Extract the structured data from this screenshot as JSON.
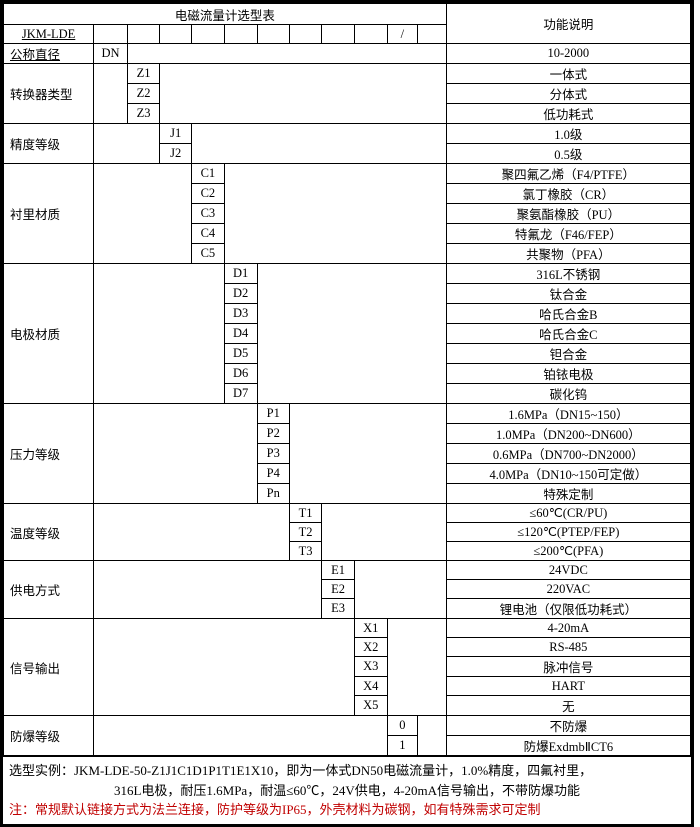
{
  "title": "电磁流量计选型表",
  "func_label": "功能说明",
  "model_code": "JKM-LDE",
  "slash": "/",
  "rows": [
    {
      "cat": "公称直径",
      "cat_class": "ul",
      "depth": 0,
      "code": "DN",
      "desc": "10-2000"
    },
    {
      "cat": "转换器类型",
      "depth": 1,
      "items": [
        [
          "Z1",
          "一体式"
        ],
        [
          "Z2",
          "分体式"
        ],
        [
          "Z3",
          "低功耗式"
        ]
      ]
    },
    {
      "cat": "精度等级",
      "depth": 2,
      "items": [
        [
          "J1",
          "1.0级"
        ],
        [
          "J2",
          "0.5级"
        ]
      ]
    },
    {
      "cat": "衬里材质",
      "depth": 3,
      "items": [
        [
          "C1",
          "聚四氟乙烯（F4/PTFE）"
        ],
        [
          "C2",
          "氯丁橡胶（CR）"
        ],
        [
          "C3",
          "聚氨酯橡胶（PU）"
        ],
        [
          "C4",
          "特氟龙（F46/FEP）"
        ],
        [
          "C5",
          "共聚物（PFA）"
        ]
      ]
    },
    {
      "cat": "电极材质",
      "depth": 4,
      "items": [
        [
          "D1",
          "316L不锈钢"
        ],
        [
          "D2",
          "钛合金"
        ],
        [
          "D3",
          "哈氏合金B"
        ],
        [
          "D4",
          "哈氏合金C"
        ],
        [
          "D5",
          "钽合金"
        ],
        [
          "D6",
          "铂铱电极"
        ],
        [
          "D7",
          "碳化钨"
        ]
      ]
    },
    {
      "cat": "压力等级",
      "depth": 5,
      "items": [
        [
          "P1",
          "1.6MPa（DN15~150）"
        ],
        [
          "P2",
          "1.0MPa（DN200~DN600）"
        ],
        [
          "P3",
          "0.6MPa（DN700~DN2000）"
        ],
        [
          "P4",
          "4.0MPa（DN10~150可定做）"
        ],
        [
          "Pn",
          "特殊定制"
        ]
      ]
    },
    {
      "cat": "温度等级",
      "depth": 6,
      "items": [
        [
          "T1",
          "≤60℃(CR/PU)"
        ],
        [
          "T2",
          "≤120℃(PTEP/FEP)"
        ],
        [
          "T3",
          "≤200℃(PFA)"
        ]
      ]
    },
    {
      "cat": "供电方式",
      "depth": 7,
      "items": [
        [
          "E1",
          "24VDC"
        ],
        [
          "E2",
          "220VAC"
        ],
        [
          "E3",
          "锂电池（仅限低功耗式）"
        ]
      ]
    },
    {
      "cat": "信号输出",
      "depth": 8,
      "items": [
        [
          "X1",
          "4-20mA"
        ],
        [
          "X2",
          "RS-485"
        ],
        [
          "X3",
          "脉冲信号"
        ],
        [
          "X4",
          "HART"
        ],
        [
          "X5",
          "无"
        ]
      ]
    },
    {
      "cat": "防爆等级",
      "depth": 9,
      "items": [
        [
          "0",
          "不防爆"
        ],
        [
          "1",
          "防爆ExdmbⅡCT6"
        ]
      ]
    }
  ],
  "foot_line1": "选型实例：JKM-LDE-50-Z1J1C1D1P1T1E1X10，即为一体式DN50电磁流量计，1.0%精度，四氟衬里，",
  "foot_line2": "316L电极，耐压1.6MPa，耐温≤60℃，24V供电，4-20mA信号输出，不带防爆功能",
  "foot_note": "注：常规默认链接方式为法兰连接，防护等级为IP65，外壳材料为碳钢，如有特殊需求可定制",
  "colors": {
    "border": "#000000",
    "red": "#c00000",
    "bg": "#ffffff"
  }
}
